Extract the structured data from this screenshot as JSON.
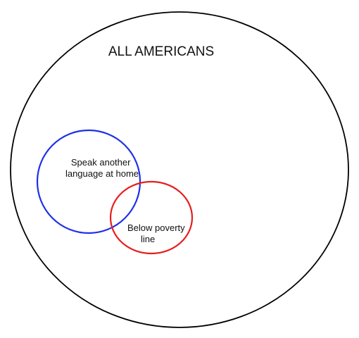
{
  "diagram": {
    "title": "ALL AMERICANS",
    "sets": [
      {
        "id": "all",
        "label": "ALL AMERICANS",
        "color": "#000000"
      },
      {
        "id": "language",
        "label_lines": [
          "Speak another",
          "language at home"
        ],
        "color": "#1f2fe6"
      },
      {
        "id": "poverty",
        "label_lines": [
          "Below poverty",
          "line"
        ],
        "color": "#e61e1e"
      }
    ]
  }
}
